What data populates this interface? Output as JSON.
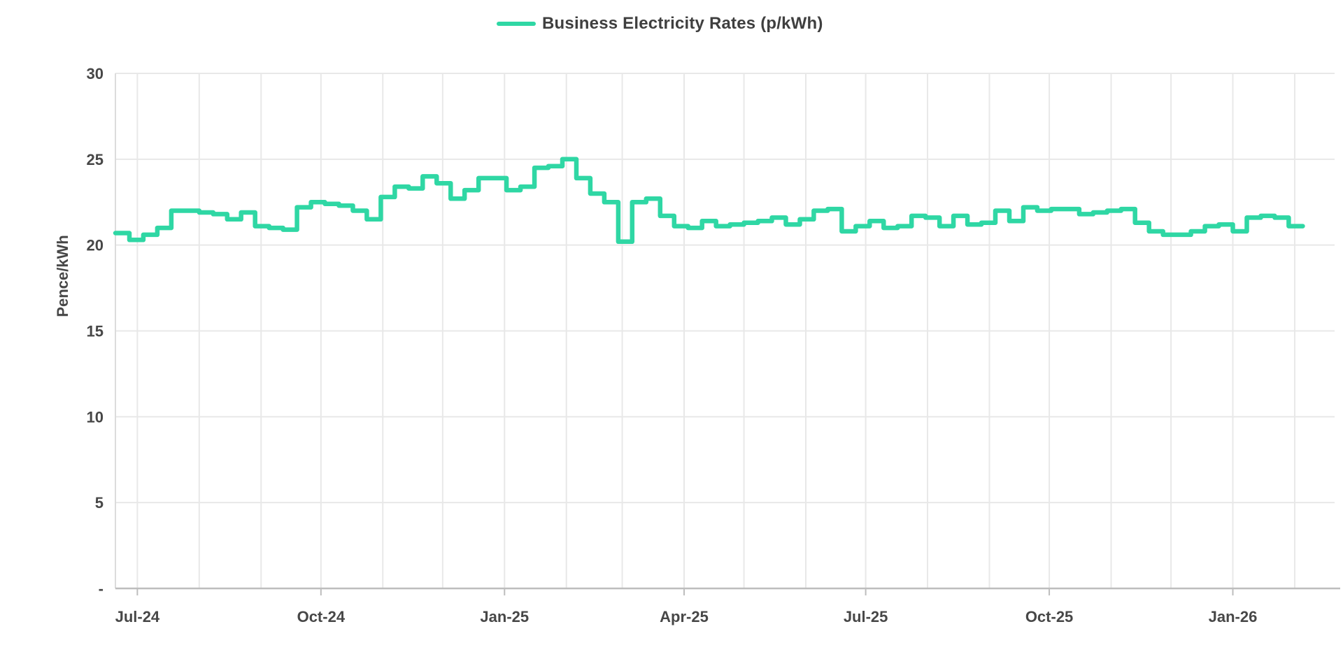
{
  "legend": {
    "label": "Business Electricity Rates (p/kWh)"
  },
  "chart_data": {
    "type": "line",
    "step": true,
    "title": "Business Electricity Rates (p/kWh)",
    "xlabel": "",
    "ylabel": "Pence/kWh",
    "ylim": [
      0,
      30
    ],
    "grid": true,
    "legend_position": "top",
    "y_ticks": [
      {
        "value": 0,
        "label": "-"
      },
      {
        "value": 5,
        "label": "5"
      },
      {
        "value": 10,
        "label": "10"
      },
      {
        "value": 15,
        "label": "15"
      },
      {
        "value": 20,
        "label": "20"
      },
      {
        "value": 25,
        "label": "25"
      },
      {
        "value": 30,
        "label": "30"
      }
    ],
    "x_ticks": [
      {
        "day": 0,
        "label": "Jul-24"
      },
      {
        "day": 92,
        "label": "Oct-24"
      },
      {
        "day": 184,
        "label": "Jan-25"
      },
      {
        "day": 274,
        "label": "Apr-25"
      },
      {
        "day": 365,
        "label": "Jul-25"
      },
      {
        "day": 457,
        "label": "Oct-25"
      },
      {
        "day": 549,
        "label": "Jan-26"
      }
    ],
    "month_gridline_days": [
      0,
      31,
      62,
      92,
      123,
      153,
      184,
      215,
      243,
      274,
      304,
      335,
      365,
      396,
      427,
      457,
      488,
      518,
      549,
      580
    ],
    "x_domain_days": [
      -11,
      600
    ],
    "series": [
      {
        "name": "Business Electricity Rates (p/kWh)",
        "color": "#2fd7a4",
        "start_day": -11,
        "interval_days": 7,
        "values": [
          20.7,
          20.3,
          20.6,
          21.0,
          22.0,
          22.0,
          21.9,
          21.8,
          21.5,
          21.9,
          21.1,
          21.0,
          20.9,
          22.2,
          22.5,
          22.4,
          22.3,
          22.0,
          21.5,
          22.8,
          23.4,
          23.3,
          24.0,
          23.6,
          22.7,
          23.2,
          23.9,
          23.9,
          23.2,
          23.4,
          24.5,
          24.6,
          25.0,
          23.9,
          23.0,
          22.5,
          20.2,
          22.5,
          22.7,
          21.7,
          21.1,
          21.0,
          21.4,
          21.1,
          21.2,
          21.3,
          21.4,
          21.6,
          21.2,
          21.5,
          22.0,
          22.1,
          20.8,
          21.1,
          21.4,
          21.0,
          21.1,
          21.7,
          21.6,
          21.1,
          21.7,
          21.2,
          21.3,
          22.0,
          21.4,
          22.2,
          22.0,
          22.1,
          22.1,
          21.8,
          21.9,
          22.0,
          22.1,
          21.3,
          20.8,
          20.6,
          20.6,
          20.8,
          21.1,
          21.2,
          20.8,
          21.6,
          21.7,
          21.6,
          21.1
        ]
      }
    ],
    "colors": {
      "line": "#2fd7a4",
      "grid": "#e8e8e8",
      "axis": "#bdbdbd",
      "text": "#474747",
      "background": "#ffffff"
    }
  }
}
